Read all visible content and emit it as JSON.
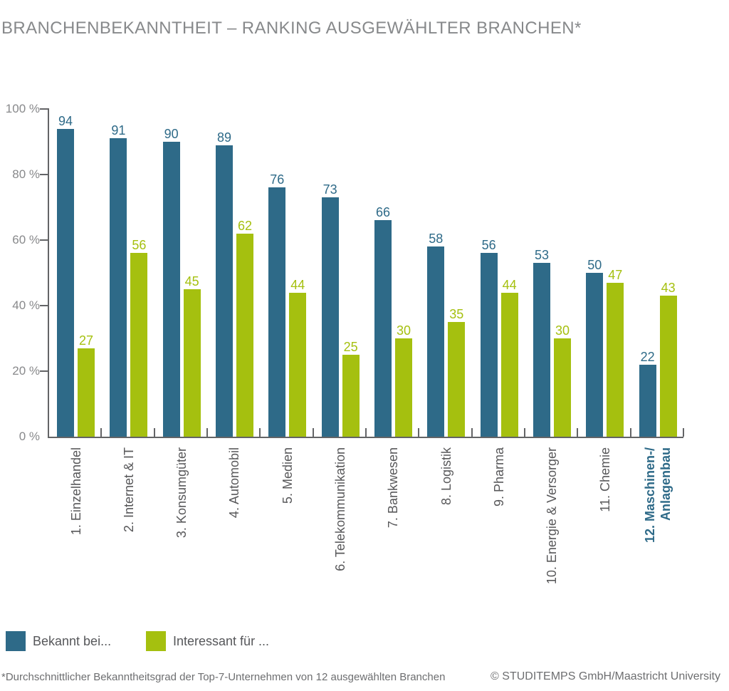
{
  "title": "BRANCHENBEKANNTHEIT – RANKING AUSGEWÄHLTER BRANCHEN*",
  "chart_data": {
    "type": "bar",
    "categories": [
      "1. Einzelhandel",
      "2. Internet & IT",
      "3. Konsumgüter",
      "4. Automobil",
      "5. Medien",
      "6. Telekommunikation",
      "7. Bankwesen",
      "8. Logistik",
      "9. Pharma",
      "10. Energie & Versorger",
      "11. Chemie",
      "12. Maschinen-/\nAnlagenbau"
    ],
    "series": [
      {
        "name": "Bekannt bei...",
        "color": "#2e6a88",
        "values": [
          94,
          91,
          90,
          89,
          76,
          73,
          66,
          58,
          56,
          53,
          50,
          22
        ]
      },
      {
        "name": "Interessant für ...",
        "color": "#a5c00f",
        "values": [
          27,
          56,
          45,
          62,
          44,
          25,
          30,
          35,
          44,
          30,
          47,
          43
        ]
      }
    ],
    "yticks": [
      {
        "label": "100 %",
        "value": 100
      },
      {
        "label": "80 %",
        "value": 80
      },
      {
        "label": "60 %",
        "value": 60
      },
      {
        "label": "40 %",
        "value": 40
      },
      {
        "label": "20 %",
        "value": 20
      },
      {
        "label": "0 %",
        "value": 0
      }
    ],
    "ylim": [
      0,
      100
    ],
    "grid": false,
    "legend_position": "bottom-left",
    "value_labels": true,
    "highlight_category_index": 11,
    "highlight_color": "#2e6a88"
  },
  "legend": [
    {
      "label": "Bekannt bei...",
      "color": "#2e6a88"
    },
    {
      "label": "Interessant für ...",
      "color": "#a5c00f"
    }
  ],
  "footer": {
    "note": "*Durchschnittlicher Bekanntheitsgrad der Top-7-Unternehmen von 12 ausgewählten Branchen",
    "copyright": "© STUDITEMPS GmbH/Maastricht University"
  }
}
